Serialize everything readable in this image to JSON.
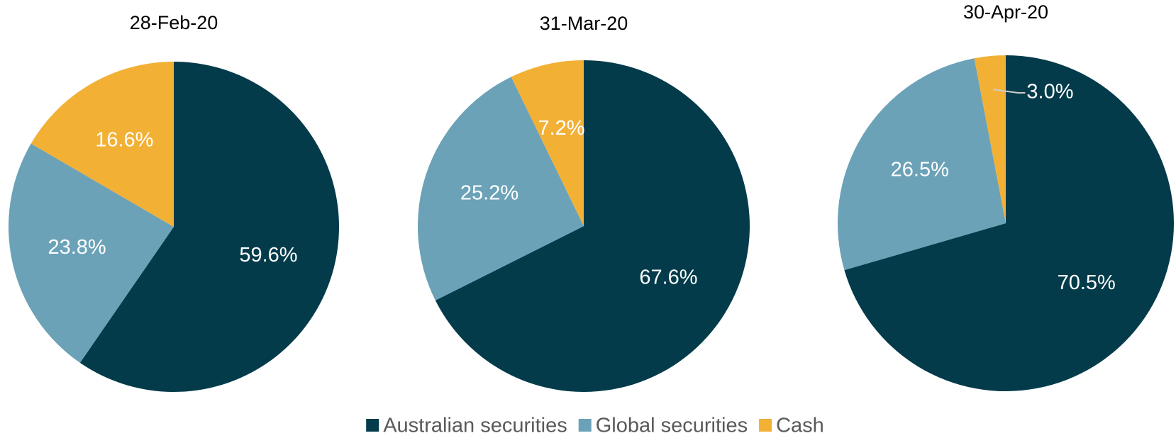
{
  "chart_data": [
    {
      "type": "pie",
      "title": "28-Feb-20",
      "categories": [
        "Australian securities",
        "Global securities",
        "Cash"
      ],
      "values": [
        59.6,
        23.8,
        16.6
      ],
      "value_labels": [
        "59.6%",
        "23.8%",
        "16.6%"
      ],
      "colors": [
        "#033b4a",
        "#6ba2b7",
        "#f2b035"
      ]
    },
    {
      "type": "pie",
      "title": "31-Mar-20",
      "categories": [
        "Australian securities",
        "Global securities",
        "Cash"
      ],
      "values": [
        67.6,
        25.2,
        7.2
      ],
      "value_labels": [
        "67.6%",
        "25.2%",
        "7.2%"
      ],
      "colors": [
        "#033b4a",
        "#6ba2b7",
        "#f2b035"
      ]
    },
    {
      "type": "pie",
      "title": "30-Apr-20",
      "categories": [
        "Australian securities",
        "Global securities",
        "Cash"
      ],
      "values": [
        70.5,
        26.5,
        3.0
      ],
      "value_labels": [
        "70.5%",
        "26.5%",
        "3.0%"
      ],
      "colors": [
        "#033b4a",
        "#6ba2b7",
        "#f2b035"
      ]
    }
  ]
}
